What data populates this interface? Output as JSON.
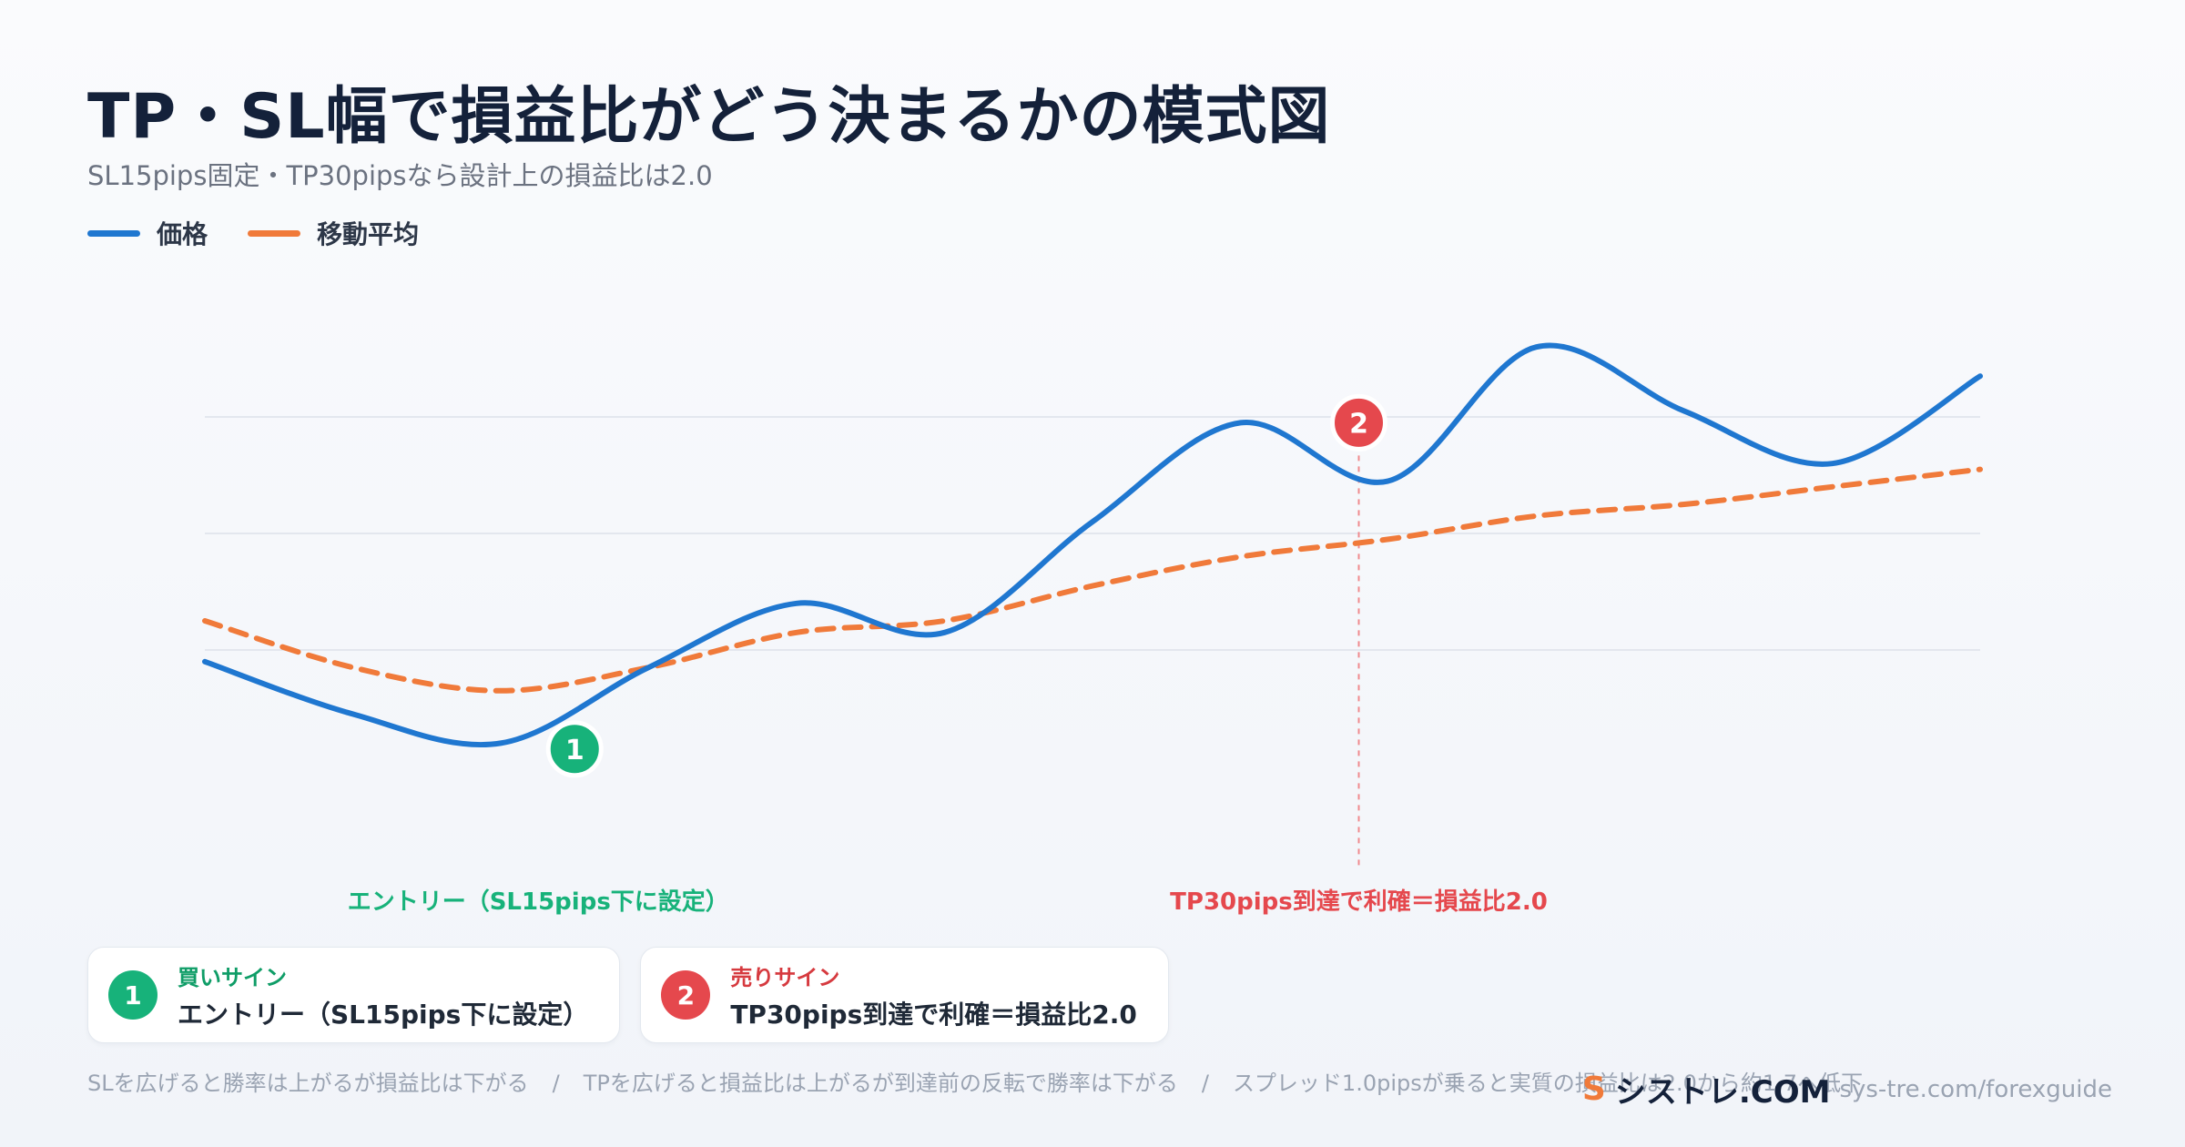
{
  "title": "TP・SL幅で損益比がどう決まるかの模式図",
  "subtitle": "SL15pips固定・TP30pipsなら設計上の損益比は2.0",
  "legend": [
    {
      "label": "価格",
      "color": "#1f77d0"
    },
    {
      "label": "移動平均",
      "color": "#f07a3a"
    }
  ],
  "chart_data": {
    "type": "line",
    "grid": true,
    "x": [
      0,
      1,
      2,
      3,
      4,
      5,
      6,
      7,
      8,
      9,
      10,
      11,
      12
    ],
    "ylim": [
      0,
      100
    ],
    "series": [
      {
        "name": "価格",
        "color": "#1f77d0",
        "style": "solid",
        "values": [
          38,
          29,
          24,
          37,
          48,
          43,
          62,
          79,
          69,
          92,
          81,
          72,
          87
        ]
      },
      {
        "name": "移動平均",
        "color": "#f07a3a",
        "style": "dashed",
        "values": [
          45,
          37,
          33,
          37,
          43,
          45,
          51,
          56,
          59,
          63,
          65,
          68,
          71
        ]
      }
    ],
    "markers": [
      {
        "number": "1",
        "x": 2.5,
        "y": 23,
        "color": "#17b27a",
        "label": "エントリー（SL15pips下に設定）",
        "label_color": "#17b27a"
      },
      {
        "number": "2",
        "x": 7.8,
        "y": 79,
        "color": "#e5484d",
        "label": "TP30pips到達で利確＝損益比2.0",
        "label_color": "#e5484d"
      }
    ]
  },
  "cards": [
    {
      "number": "1",
      "label": "買いサイン",
      "desc": "エントリー（SL15pips下に設定）",
      "badge_color": "#17b27a",
      "label_color": "#0f9d67"
    },
    {
      "number": "2",
      "label": "売りサイン",
      "desc": "TP30pips到達で利確＝損益比2.0",
      "badge_color": "#e5484d",
      "label_color": "#d63a3f"
    }
  ],
  "footnote": [
    "SLを広げると勝率は上がるが損益比は下がる",
    "TPを広げると損益比は上がるが到達前の反転で勝率は下がる",
    "スプレッド1.0pipsが乗ると実質の損益比は2.0から約1.7へ低下"
  ],
  "footnote_sep": "/",
  "brand": {
    "logo": "S",
    "name": "シストレ.COM",
    "url": "sys-tre.com/forexguide"
  }
}
